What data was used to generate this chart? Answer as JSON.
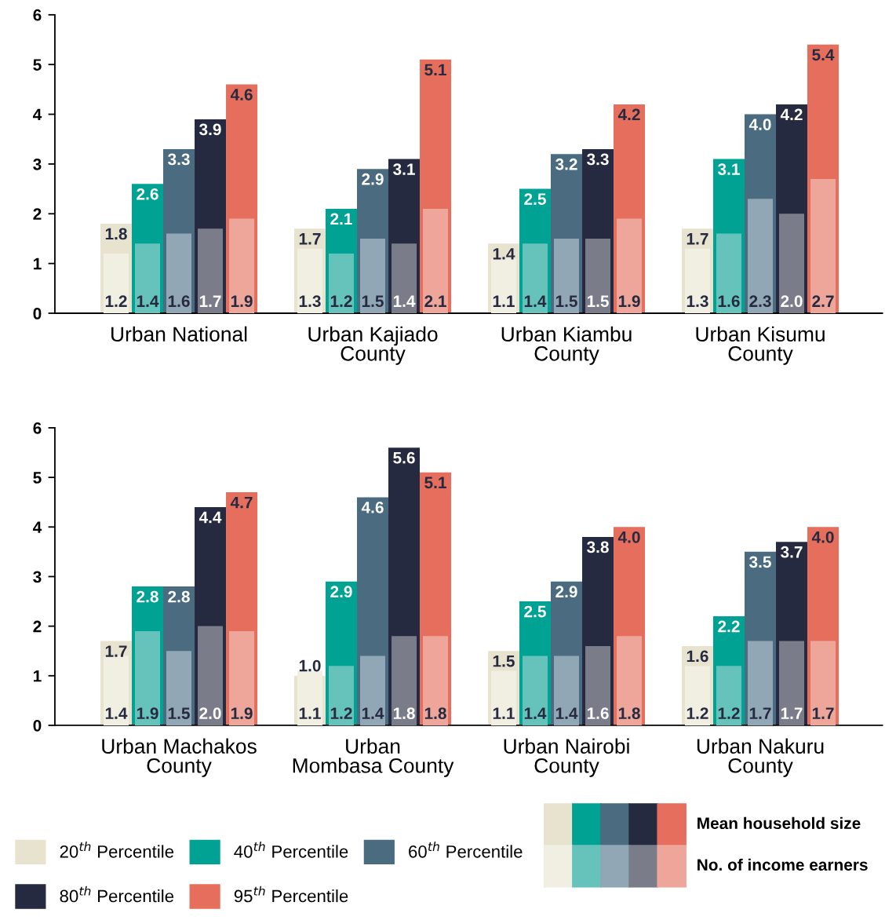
{
  "chart_data": [
    {
      "type": "bar",
      "categories": [
        "Urban National",
        "Urban Kajiado\nCounty",
        "Urban Kiambu\nCounty",
        "Urban Kisumu\nCounty"
      ],
      "ylim": [
        0,
        6
      ],
      "yticks": [
        0,
        1,
        2,
        3,
        4,
        5,
        6
      ],
      "grid": false,
      "series": [
        {
          "color": "#e8e3cf",
          "values": [
            1.8,
            1.7,
            1.4,
            1.7
          ],
          "value_labels": [
            "1.8",
            "1.7",
            "1.4",
            "1.7"
          ]
        },
        {
          "color": "#00a294",
          "values": [
            2.6,
            2.1,
            2.5,
            3.1
          ],
          "value_labels": [
            "2.6",
            "2.1",
            "2.5",
            "3.1"
          ]
        },
        {
          "color": "#4a6b80",
          "values": [
            3.3,
            2.9,
            3.2,
            4.0
          ],
          "value_labels": [
            "3.3",
            "2.9",
            "3.2",
            "4.0"
          ]
        },
        {
          "color": "#262a40",
          "values": [
            3.9,
            3.1,
            3.3,
            4.2
          ],
          "value_labels": [
            "3.9",
            "3.1",
            "3.3",
            "4.2"
          ]
        },
        {
          "color": "#e56f5c",
          "values": [
            4.6,
            5.1,
            4.2,
            5.4
          ],
          "value_labels": [
            "4.6",
            "5.1",
            "4.2",
            "5.4"
          ]
        },
        {
          "color": "#f1eee2",
          "values": [
            1.2,
            1.3,
            1.1,
            1.3
          ],
          "value_labels": [
            "1.2",
            "1.3",
            "1.1",
            "1.3"
          ]
        },
        {
          "color": "#66c3bc",
          "values": [
            1.4,
            1.2,
            1.4,
            1.6
          ],
          "value_labels": [
            "1.4",
            "1.2",
            "1.4",
            "1.6"
          ]
        },
        {
          "color": "#91a7b5",
          "values": [
            1.6,
            1.5,
            1.5,
            2.3
          ],
          "value_labels": [
            "1.6",
            "1.5",
            "1.5",
            "2.3"
          ]
        },
        {
          "color": "#7a7c8a",
          "values": [
            1.7,
            1.4,
            1.5,
            2.0
          ],
          "value_labels": [
            "1.7",
            "1.4",
            "1.5",
            "2.0"
          ]
        },
        {
          "color": "#eda699",
          "values": [
            1.9,
            2.1,
            1.9,
            2.7
          ],
          "value_labels": [
            "1.9",
            "2.1",
            "1.9",
            "2.7"
          ]
        }
      ]
    },
    {
      "type": "bar",
      "categories": [
        "Urban Machakos\nCounty",
        "Urban\nMombasa County",
        "Urban Nairobi\nCounty",
        "Urban Nakuru\nCounty"
      ],
      "ylim": [
        0,
        6
      ],
      "yticks": [
        0,
        1,
        2,
        3,
        4,
        5,
        6
      ],
      "grid": false,
      "legend": "bottom",
      "annotations": [
        "Mean household size",
        "No. of income earners"
      ],
      "series": [
        {
          "name": "20$^{th}$ Percentile",
          "color": "#e8e3cf",
          "values": [
            1.7,
            1.0,
            1.5,
            1.6
          ],
          "value_labels": [
            "1.7",
            "1.0",
            "1.5",
            "1.6"
          ]
        },
        {
          "name": "40$^{th}$ Percentile",
          "color": "#00a294",
          "values": [
            2.8,
            2.9,
            2.5,
            2.2
          ],
          "value_labels": [
            "2.8",
            "2.9",
            "2.5",
            "2.2"
          ]
        },
        {
          "name": "60$^{th}$ Percentile",
          "color": "#4a6b80",
          "values": [
            2.8,
            4.6,
            2.9,
            3.5
          ],
          "value_labels": [
            "2.8",
            "4.6",
            "2.9",
            "3.5"
          ]
        },
        {
          "name": "80$^{th}$ Percentile",
          "color": "#262a40",
          "values": [
            4.4,
            5.6,
            3.8,
            3.7
          ],
          "value_labels": [
            "4.4",
            "5.6",
            "3.8",
            "3.7"
          ]
        },
        {
          "name": "95$^{th}$ Percentile",
          "color": "#e56f5c",
          "values": [
            4.7,
            5.1,
            4.0,
            4.0
          ],
          "value_labels": [
            "4.7",
            "5.1",
            "4.0",
            "4.0"
          ]
        },
        {
          "color": "#f1eee2",
          "values": [
            1.4,
            1.1,
            1.1,
            1.2
          ],
          "value_labels": [
            "1.4",
            "1.1",
            "1.1",
            "1.2"
          ]
        },
        {
          "color": "#66c3bc",
          "values": [
            1.9,
            1.2,
            1.4,
            1.2
          ],
          "value_labels": [
            "1.9",
            "1.2",
            "1.4",
            "1.2"
          ]
        },
        {
          "color": "#91a7b5",
          "values": [
            1.5,
            1.4,
            1.4,
            1.7
          ],
          "value_labels": [
            "1.5",
            "1.4",
            "1.4",
            "1.7"
          ]
        },
        {
          "color": "#7a7c8a",
          "values": [
            2.0,
            1.8,
            1.6,
            1.7
          ],
          "value_labels": [
            "2.0",
            "1.8",
            "1.6",
            "1.7"
          ]
        },
        {
          "color": "#eda699",
          "values": [
            1.9,
            1.8,
            1.8,
            1.7
          ],
          "value_labels": [
            "1.9",
            "1.8",
            "1.8",
            "1.7"
          ]
        }
      ]
    }
  ]
}
